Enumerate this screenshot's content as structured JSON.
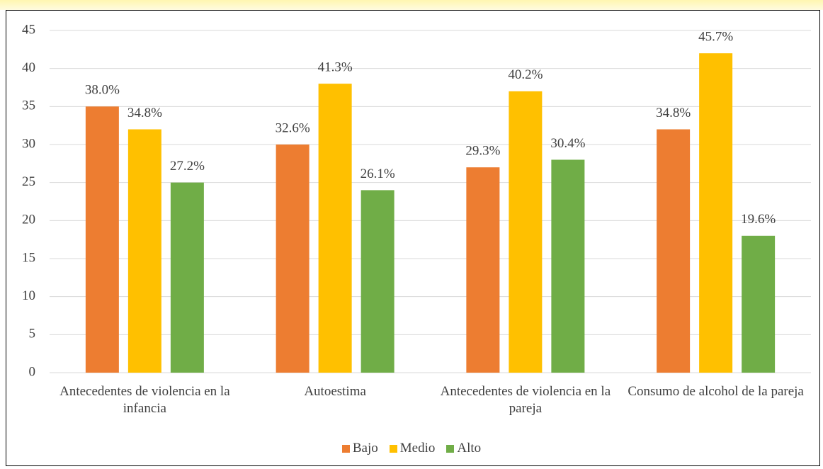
{
  "chart_data": {
    "type": "bar",
    "categories": [
      "Antecedentes de violencia en la infancia",
      "Autoestima",
      "Antecedentes de violencia en la pareja",
      "Consumo de alcohol de la pareja"
    ],
    "series": [
      {
        "name": "Bajo",
        "color": "#ed7d31",
        "values": [
          35,
          30,
          27,
          32
        ],
        "value_labels": [
          "38.0%",
          "32.6%",
          "29.3%",
          "34.8%"
        ]
      },
      {
        "name": "Medio",
        "color": "#ffc000",
        "values": [
          32,
          38,
          37,
          42
        ],
        "value_labels": [
          "34.8%",
          "41.3%",
          "40.2%",
          "45.7%"
        ]
      },
      {
        "name": "Alto",
        "color": "#70ad47",
        "values": [
          25,
          24,
          28,
          18
        ],
        "value_labels": [
          "27.2%",
          "26.1%",
          "30.4%",
          "19.6%"
        ]
      }
    ],
    "ylim": [
      0,
      45
    ],
    "yticks": [
      0,
      5,
      10,
      15,
      20,
      25,
      30,
      35,
      40,
      45
    ],
    "grid": true,
    "legend": "bottom"
  }
}
